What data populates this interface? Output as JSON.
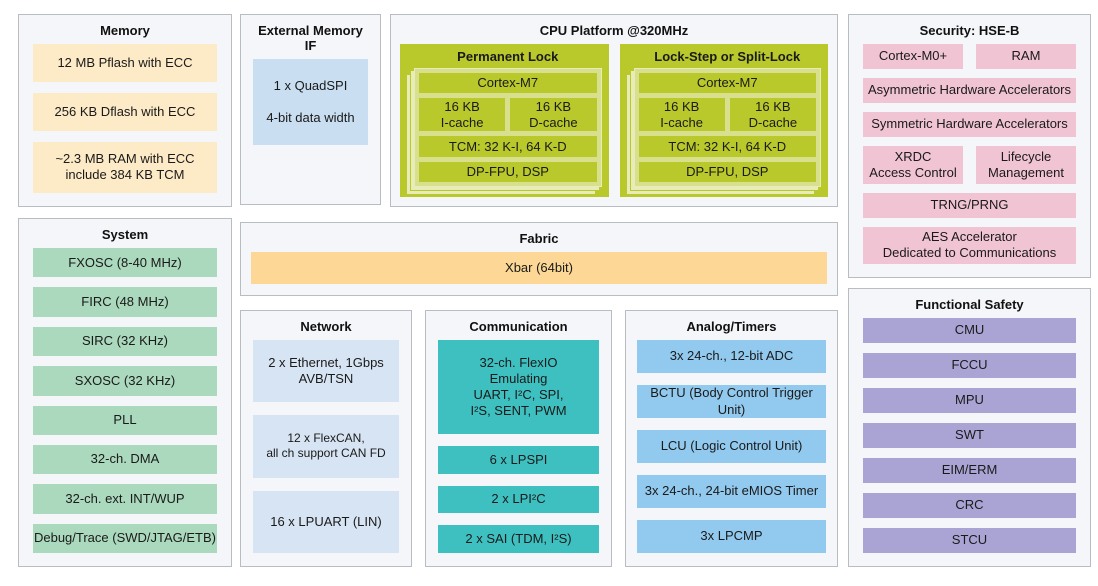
{
  "diagram": {
    "memory": {
      "title": "Memory",
      "items": [
        "12 MB Pflash with ECC",
        "256 KB Dflash with ECC",
        "~2.3 MB RAM with ECC\ninclude 384 KB TCM"
      ]
    },
    "external_memory_if": {
      "title": "External Memory IF",
      "items": [
        "1 x QuadSPI\n\n4-bit data width"
      ]
    },
    "cpu_platform": {
      "title": "CPU Platform @320MHz",
      "cores": [
        {
          "title": "Permanent Lock",
          "items": [
            "Cortex-M7",
            "16 KB\nI-cache",
            "16 KB\nD-cache",
            "TCM: 32 K-I, 64 K-D",
            "DP-FPU, DSP"
          ]
        },
        {
          "title": "Lock-Step or Split-Lock",
          "items": [
            "Cortex-M7",
            "16 KB\nI-cache",
            "16 KB\nD-cache",
            "TCM: 32 K-I, 64 K-D",
            "DP-FPU, DSP"
          ]
        }
      ]
    },
    "security": {
      "title": "Security: HSE-B",
      "items": [
        "Cortex-M0+",
        "RAM",
        "Asymmetric Hardware Accelerators",
        "Symmetric Hardware Accelerators",
        "XRDC\nAccess Control",
        "Lifecycle\nManagement",
        "TRNG/PRNG",
        "AES Accelerator\nDedicated to Communications"
      ]
    },
    "system": {
      "title": "System",
      "items": [
        "FXOSC (8-40 MHz)",
        "FIRC (48 MHz)",
        "SIRC (32 KHz)",
        "SXOSC (32 KHz)",
        "PLL",
        "32-ch. DMA",
        "32-ch. ext. INT/WUP",
        "Debug/Trace (SWD/JTAG/ETB)"
      ]
    },
    "fabric": {
      "title": "Fabric",
      "items": [
        "Xbar (64bit)"
      ]
    },
    "network": {
      "title": "Network",
      "items": [
        "2 x Ethernet, 1Gbps\nAVB/TSN",
        "12 x FlexCAN,\nall ch support CAN FD",
        "16 x LPUART (LIN)"
      ]
    },
    "communication": {
      "title": "Communication",
      "items": [
        "32-ch. FlexIO\nEmulating\nUART, I²C, SPI,\nI²S, SENT, PWM",
        "6 x LPSPI",
        "2 x LPI²C",
        "2 x SAI (TDM, I²S)"
      ]
    },
    "analog_timers": {
      "title": "Analog/Timers",
      "items": [
        "3x 24-ch., 12-bit ADC",
        "BCTU (Body Control Trigger Unit)",
        "LCU (Logic Control Unit)",
        "3x 24-ch., 24-bit eMIOS Timer",
        "3x LPCMP"
      ]
    },
    "functional_safety": {
      "title": "Functional Safety",
      "items": [
        "CMU",
        "FCCU",
        "MPU",
        "SWT",
        "EIM/ERM",
        "CRC",
        "STCU"
      ]
    }
  },
  "colors": {
    "memory_item": "#fdeac7",
    "external_item": "#c9def0",
    "network_item": "#d7e4f3",
    "cpu_green": "#b9c82b",
    "cpu_inner": "#d9e08d",
    "cpu_line": "#e8ecb8",
    "system_item": "#abd9bd",
    "fabric_item": "#fcd795",
    "communication_item": "#3fc0c0",
    "analog_item": "#92c9ee",
    "security_item": "#f1c4d3",
    "safety_item": "#aaa4d5"
  }
}
